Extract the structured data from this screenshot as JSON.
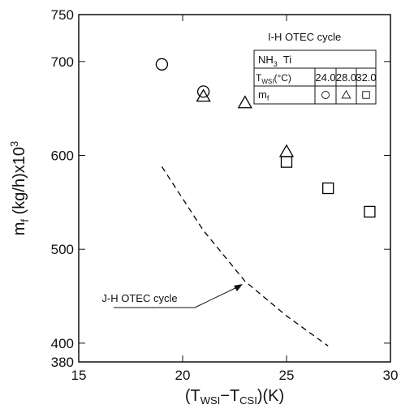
{
  "chart_data": {
    "type": "scatter",
    "ylabel_parts": [
      "m",
      "f",
      " (kg/h)x10",
      "3"
    ],
    "xlabel_parts": [
      "(T",
      "WSI",
      "−T",
      "CSI",
      ")(K)"
    ],
    "xlim": [
      15,
      30
    ],
    "xticks": [
      15,
      20,
      25,
      30
    ],
    "ylim": [
      380,
      750
    ],
    "yticks": [
      380,
      400,
      500,
      600,
      700,
      750
    ],
    "series": [
      {
        "name": "24.0",
        "marker": "circle",
        "color": "#000000",
        "x": [
          19,
          21
        ],
        "values": [
          697,
          668
        ]
      },
      {
        "name": "28.0",
        "marker": "triangle",
        "color": "#000000",
        "x": [
          21,
          23,
          25
        ],
        "values": [
          663,
          656,
          604
        ]
      },
      {
        "name": "32.0",
        "marker": "square",
        "color": "#000000",
        "x": [
          25,
          27,
          29
        ],
        "values": [
          593,
          565,
          540
        ]
      }
    ],
    "line": {
      "name": "J-H OTEC cycle",
      "style": "dashed",
      "color": "#000000",
      "x": [
        19,
        21,
        23,
        25,
        27
      ],
      "values": [
        588,
        520,
        466,
        429,
        397
      ]
    },
    "annotation": "I-H OTEC cycle",
    "table": {
      "fluid_parts": [
        "NH",
        "3",
        "  Ti"
      ],
      "temp_label_parts": [
        "T",
        "WSI",
        "(°C)"
      ],
      "mf_parts": [
        "m",
        "f"
      ]
    }
  }
}
